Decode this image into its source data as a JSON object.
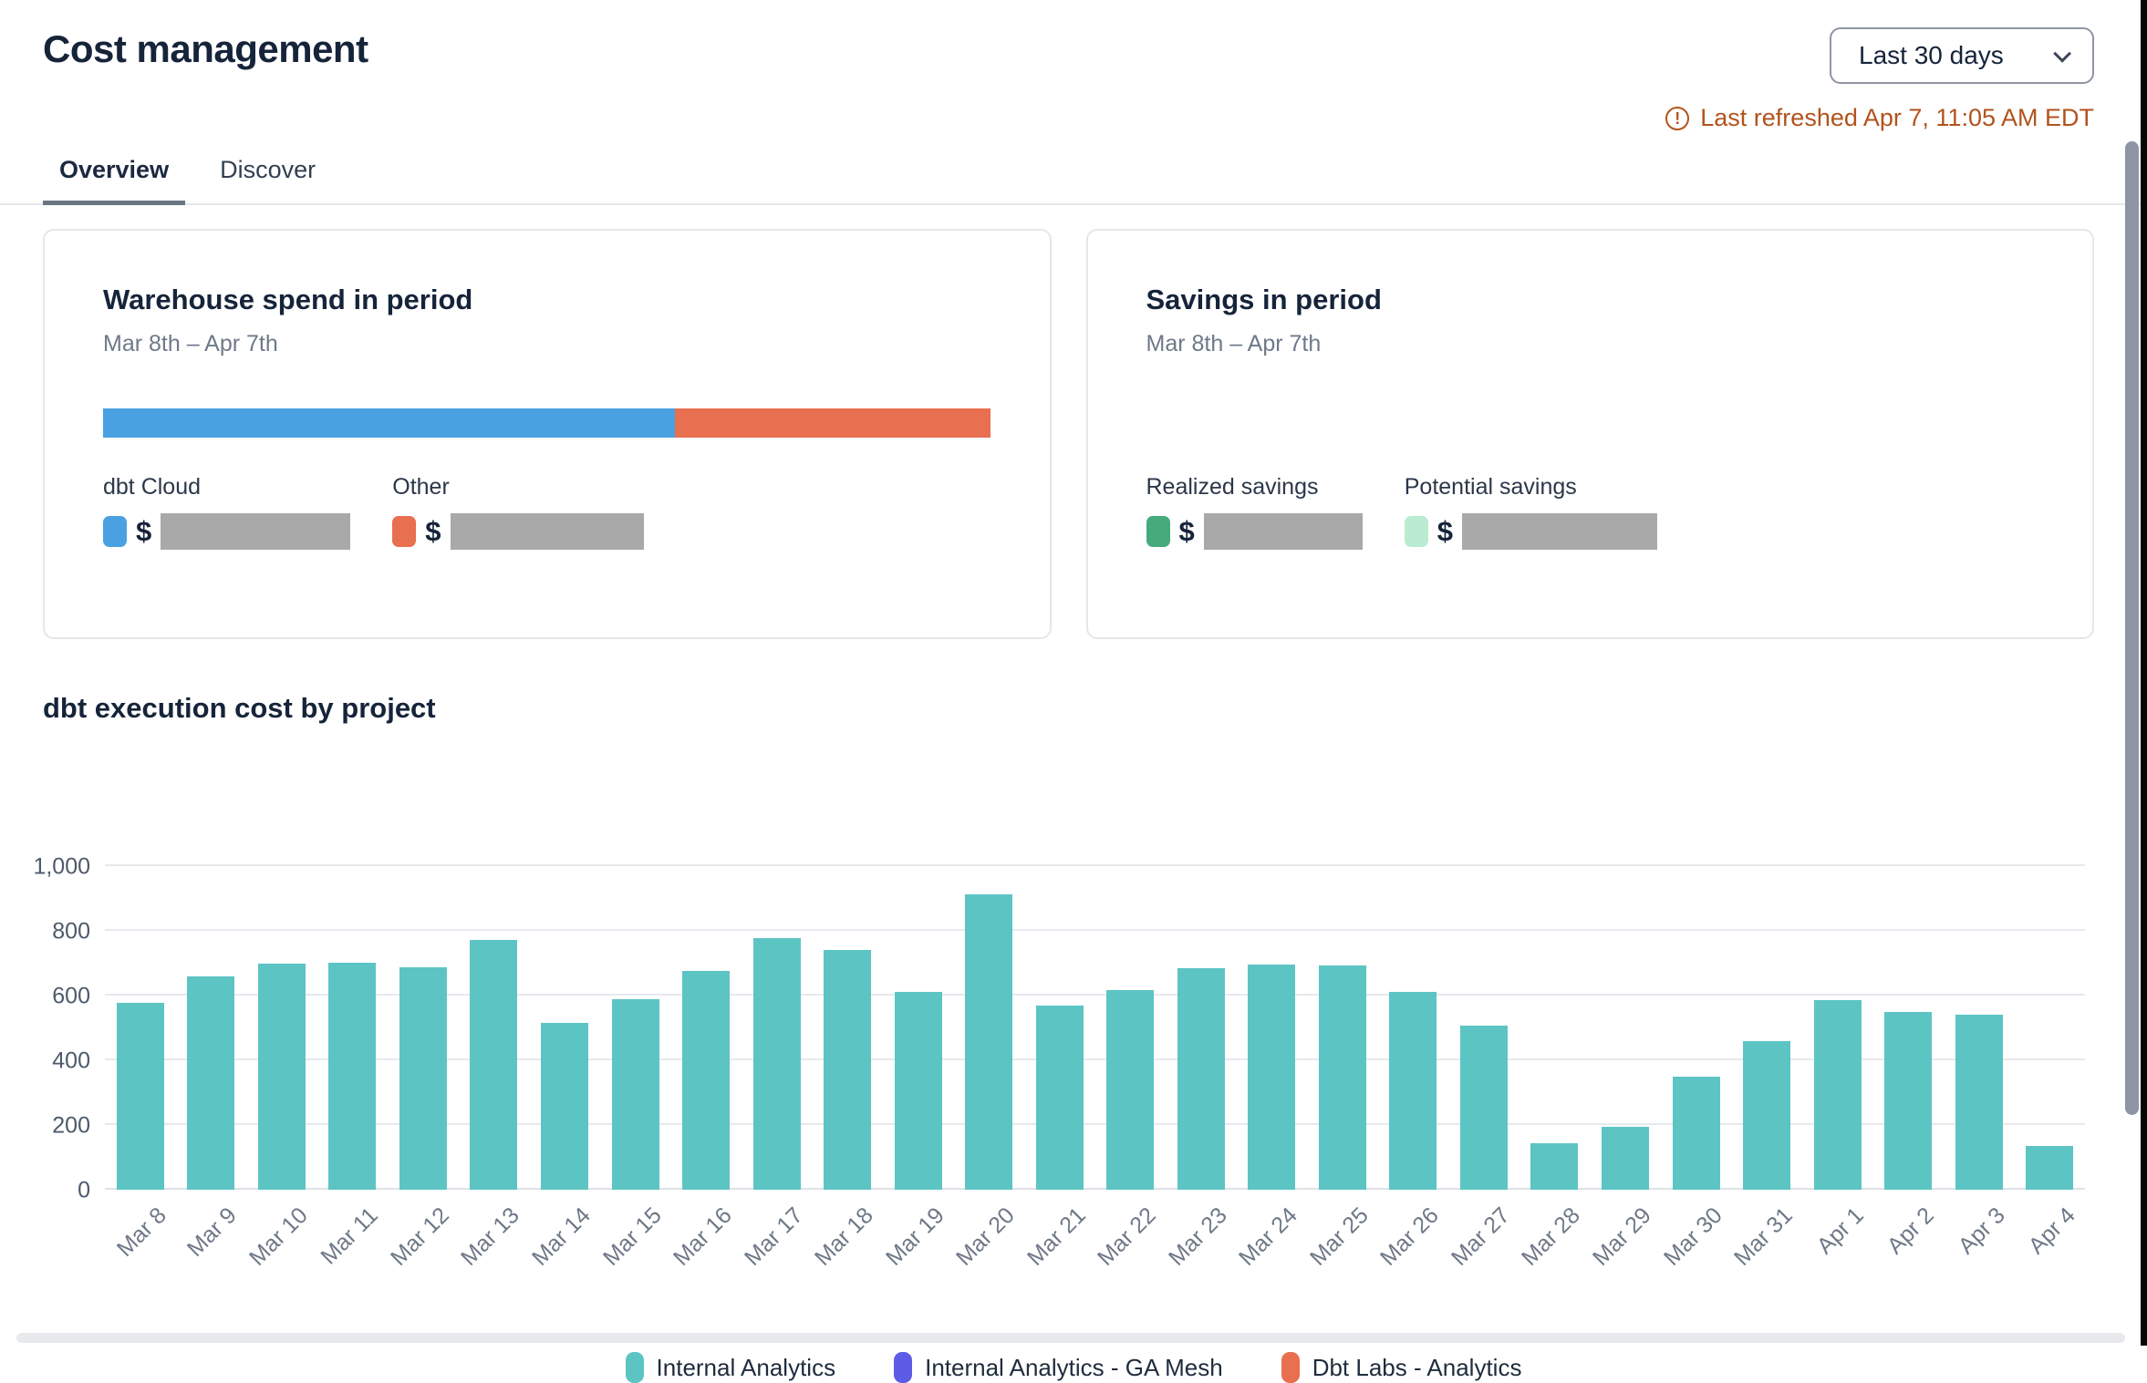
{
  "header": {
    "title": "Cost management",
    "tabs": [
      {
        "label": "Overview",
        "active": true
      },
      {
        "label": "Discover",
        "active": false
      }
    ],
    "date_range_selected": "Last 30 days",
    "refresh_icon": "!",
    "last_refreshed": "Last refreshed Apr 7, 11:05 AM EDT",
    "refresh_color": "#b2531c"
  },
  "cards": {
    "warehouse_spend": {
      "title": "Warehouse spend in period",
      "subtitle": "Mar 8th – Apr 7th",
      "stacked_bar_segments": [
        {
          "label": "dbt Cloud",
          "color": "#4aa1e2",
          "percent": 64.4
        },
        {
          "label": "Other",
          "color": "#e86f50",
          "percent": 35.6
        }
      ],
      "legend": [
        {
          "label": "dbt Cloud",
          "color": "#4aa1e2",
          "value_prefix": "$",
          "value_redacted": true
        },
        {
          "label": "Other",
          "color": "#e86f50",
          "value_prefix": "$",
          "value_redacted": true
        }
      ]
    },
    "savings": {
      "title": "Savings in period",
      "subtitle": "Mar 8th – Apr 7th",
      "legend": [
        {
          "label": "Realized savings",
          "color": "#46ab7c",
          "value_prefix": "$",
          "value_redacted": true
        },
        {
          "label": "Potential savings",
          "color": "#b9ecd1",
          "value_prefix": "$",
          "value_redacted": true
        }
      ]
    }
  },
  "chart_section": {
    "title": "dbt execution cost by project"
  },
  "chart_data": {
    "type": "bar",
    "title": "dbt execution cost by project",
    "categories": [
      "Mar 8",
      "Mar 9",
      "Mar 10",
      "Mar 11",
      "Mar 12",
      "Mar 13",
      "Mar 14",
      "Mar 15",
      "Mar 16",
      "Mar 17",
      "Mar 18",
      "Mar 19",
      "Mar 20",
      "Mar 21",
      "Mar 22",
      "Mar 23",
      "Mar 24",
      "Mar 25",
      "Mar 26",
      "Mar 27",
      "Mar 28",
      "Mar 29",
      "Mar 30",
      "Mar 31",
      "Apr 1",
      "Apr 2",
      "Apr 3",
      "Apr 4"
    ],
    "series": [
      {
        "name": "Internal Analytics",
        "color": "#5dc4c4",
        "values": [
          578,
          658,
          698,
          702,
          688,
          772,
          515,
          590,
          677,
          778,
          740,
          612,
          913,
          570,
          616,
          684,
          697,
          694,
          611,
          508,
          144,
          194,
          348,
          460,
          585,
          548,
          541,
          135
        ]
      }
    ],
    "legend_entries": [
      {
        "name": "Internal Analytics",
        "color": "#5dc4c4"
      },
      {
        "name": "Internal Analytics - GA Mesh",
        "color": "#5c5ce6"
      },
      {
        "name": "Dbt Labs - Analytics",
        "color": "#e86f50"
      }
    ],
    "xlabel": "",
    "ylabel": "",
    "ylim": [
      0,
      1000
    ],
    "yticks": [
      0,
      200,
      400,
      600,
      800,
      1000
    ],
    "grid": true,
    "legend_position": "bottom"
  }
}
